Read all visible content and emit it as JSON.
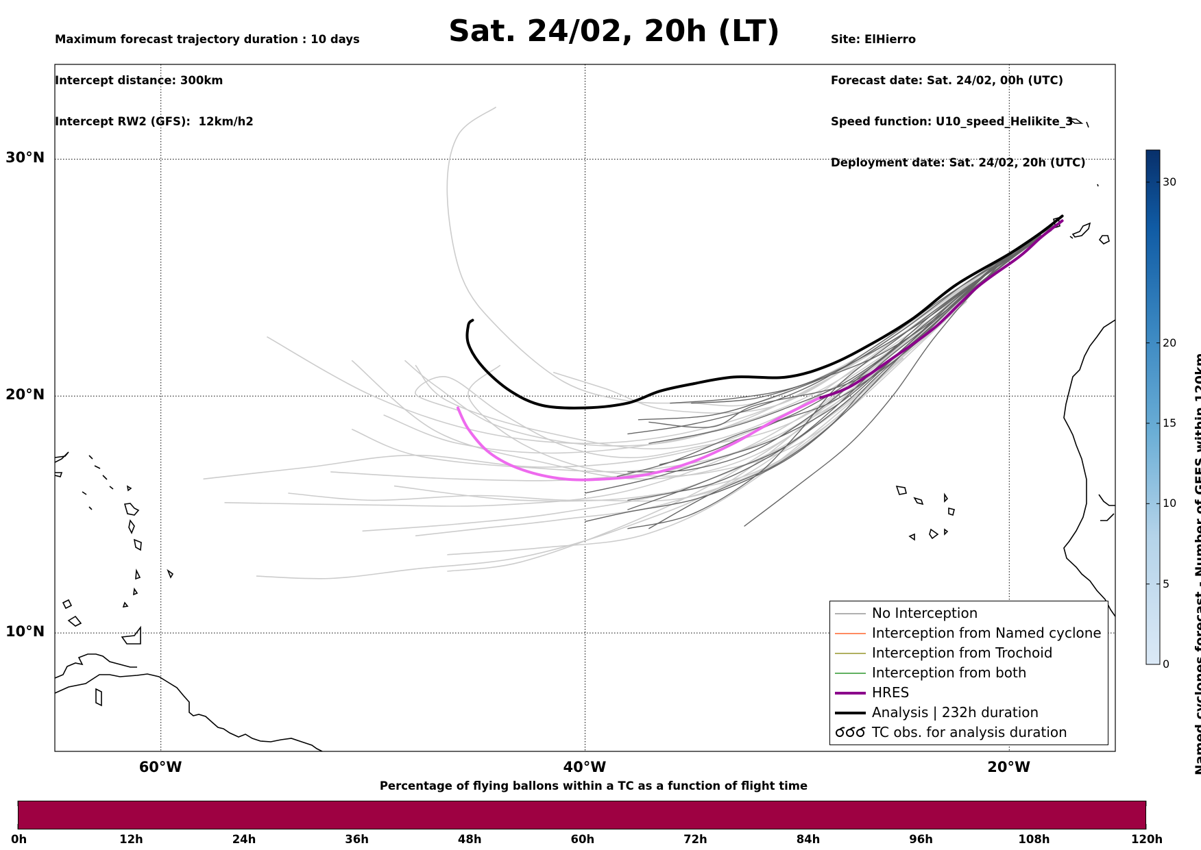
{
  "header": {
    "left_lines": [
      "Maximum forecast trajectory duration : 10 days",
      "Intercept distance: 300km",
      "Intercept RW2 (GFS):  12km/h2"
    ],
    "title": "Sat. 24/02, 20h (LT)",
    "right_lines": [
      "Site: ElHierro",
      "Forecast date: Sat. 24/02, 00h (UTC)",
      "Speed function: U10_speed_Helikite_3",
      "Deployment date: Sat. 24/02, 20h (UTC)"
    ]
  },
  "map": {
    "lon_range": [
      -65,
      -15
    ],
    "lat_range": [
      5,
      34
    ],
    "lon_ticks": [
      {
        "value": -60,
        "label": "60°W"
      },
      {
        "value": -40,
        "label": "40°W"
      },
      {
        "value": -20,
        "label": "20°W"
      }
    ],
    "lat_ticks": [
      {
        "value": 30,
        "label": "30°N"
      },
      {
        "value": 20,
        "label": "20°N"
      },
      {
        "value": 10,
        "label": "10°N"
      }
    ],
    "grid": true,
    "colors": {
      "light_member": "#cccccc",
      "dark_member": "#666666",
      "hres": "#8b008b",
      "hres_highlight": "#ee6aee",
      "analysis": "#000000"
    },
    "analysis_track": [
      [
        -17.5,
        27.6
      ],
      [
        -18.5,
        26.9
      ],
      [
        -20,
        26.0
      ],
      [
        -22.5,
        24.7
      ],
      [
        -24.5,
        23.3
      ],
      [
        -26.5,
        22.2
      ],
      [
        -28.5,
        21.3
      ],
      [
        -30.5,
        20.8
      ],
      [
        -33,
        20.8
      ],
      [
        -35,
        20.5
      ],
      [
        -36.5,
        20.2
      ],
      [
        -38,
        19.7
      ],
      [
        -40,
        19.5
      ],
      [
        -42,
        19.6
      ],
      [
        -43.5,
        20.2
      ],
      [
        -44.8,
        21.2
      ],
      [
        -45.5,
        22.2
      ],
      [
        -45.5,
        23.0
      ],
      [
        -45.3,
        23.2
      ]
    ],
    "hres_track": [
      [
        -17.5,
        27.4
      ],
      [
        -18.5,
        26.7
      ],
      [
        -19.5,
        25.9
      ],
      [
        -21.5,
        24.6
      ],
      [
        -23.5,
        22.9
      ],
      [
        -25.5,
        21.6
      ],
      [
        -27.5,
        20.4
      ],
      [
        -29,
        19.9
      ],
      [
        -31,
        19.0
      ],
      [
        -33,
        18.0
      ],
      [
        -35,
        17.2
      ],
      [
        -37,
        16.7
      ],
      [
        -39,
        16.5
      ],
      [
        -41,
        16.5
      ],
      [
        -43,
        16.9
      ],
      [
        -44.5,
        17.6
      ],
      [
        -45.5,
        18.6
      ],
      [
        -46,
        19.5
      ]
    ],
    "hres_highlight_start_lon": -28.5,
    "light_members": [
      [
        [
          -20,
          26
        ],
        [
          -24,
          23.5
        ],
        [
          -28,
          21.2
        ],
        [
          -32,
          19.7
        ],
        [
          -35,
          19.7
        ],
        [
          -38,
          19.8
        ],
        [
          -41,
          20.6
        ],
        [
          -44,
          22.8
        ],
        [
          -45.8,
          25
        ],
        [
          -46.5,
          28.5
        ],
        [
          -46,
          31
        ],
        [
          -44.2,
          32.2
        ]
      ],
      [
        [
          -20,
          26
        ],
        [
          -25,
          22.8
        ],
        [
          -30,
          20
        ],
        [
          -35,
          18.5
        ],
        [
          -40,
          18
        ],
        [
          -45,
          18.5
        ],
        [
          -50,
          20
        ],
        [
          -55,
          22.5
        ]
      ],
      [
        [
          -20,
          26
        ],
        [
          -26,
          22
        ],
        [
          -31,
          19
        ],
        [
          -36,
          17.5
        ],
        [
          -42,
          17
        ],
        [
          -48,
          17.5
        ],
        [
          -53,
          17
        ],
        [
          -58,
          16.5
        ]
      ],
      [
        [
          -20,
          26
        ],
        [
          -26,
          21.5
        ],
        [
          -32,
          18
        ],
        [
          -38,
          16
        ],
        [
          -44,
          15.4
        ],
        [
          -50,
          15.4
        ],
        [
          -57,
          15.5
        ]
      ],
      [
        [
          -20,
          26
        ],
        [
          -27,
          20.8
        ],
        [
          -33,
          16.5
        ],
        [
          -38,
          14.5
        ],
        [
          -43,
          13.2
        ],
        [
          -48,
          12.7
        ],
        [
          -52,
          12.3
        ],
        [
          -55.5,
          12.4
        ]
      ],
      [
        [
          -20,
          26
        ],
        [
          -27,
          20.5
        ],
        [
          -33,
          16.8
        ],
        [
          -38,
          14.6
        ],
        [
          -43,
          13.0
        ],
        [
          -46.5,
          12.6
        ]
      ],
      [
        [
          -21,
          25
        ],
        [
          -27,
          20.5
        ],
        [
          -32,
          17.5
        ],
        [
          -37,
          16.5
        ],
        [
          -42,
          17.2
        ],
        [
          -47,
          18.5
        ],
        [
          -51,
          21.5
        ]
      ],
      [
        [
          -21,
          25
        ],
        [
          -28,
          19.8
        ],
        [
          -34,
          17.3
        ],
        [
          -40,
          16.5
        ],
        [
          -46,
          16.5
        ],
        [
          -52,
          16.8
        ]
      ],
      [
        [
          -22,
          24
        ],
        [
          -28,
          19.5
        ],
        [
          -34,
          16
        ],
        [
          -40,
          15.6
        ],
        [
          -45,
          15.8
        ],
        [
          -50,
          15.6
        ],
        [
          -54,
          15.9
        ]
      ],
      [
        [
          -22,
          24
        ],
        [
          -29,
          18.8
        ],
        [
          -35,
          16.2
        ],
        [
          -41,
          15.1
        ],
        [
          -46,
          14.6
        ],
        [
          -50.5,
          14.3
        ]
      ],
      [
        [
          -23,
          23.5
        ],
        [
          -30,
          19.5
        ],
        [
          -36,
          17.8
        ],
        [
          -42,
          18.5
        ],
        [
          -46.5,
          19.8
        ],
        [
          -48,
          21.3
        ]
      ],
      [
        [
          -23,
          23.5
        ],
        [
          -29,
          18.5
        ],
        [
          -34,
          16.8
        ],
        [
          -39,
          16.8
        ],
        [
          -43,
          18
        ],
        [
          -45.5,
          20
        ],
        [
          -44,
          21.3
        ]
      ],
      [
        [
          -23,
          23.2
        ],
        [
          -30,
          17.7
        ],
        [
          -36,
          15.5
        ],
        [
          -41,
          14.8
        ],
        [
          -45,
          14.4
        ],
        [
          -48,
          14.1
        ]
      ],
      [
        [
          -24,
          22.8
        ],
        [
          -30,
          19
        ],
        [
          -35,
          17.8
        ],
        [
          -38,
          17.4
        ],
        [
          -41,
          17.9
        ],
        [
          -44,
          19.3
        ],
        [
          -46.5,
          20.8
        ],
        [
          -48,
          20.1
        ],
        [
          -46,
          19.4
        ]
      ],
      [
        [
          -24,
          22.5
        ],
        [
          -31,
          18.3
        ],
        [
          -37,
          16.9
        ],
        [
          -43,
          17
        ],
        [
          -48,
          17.5
        ],
        [
          -51,
          18.6
        ]
      ],
      [
        [
          -25,
          21.6
        ],
        [
          -32,
          16.5
        ],
        [
          -37,
          14.2
        ],
        [
          -42,
          13.6
        ],
        [
          -46.5,
          13.3
        ]
      ],
      [
        [
          -25,
          21.6
        ],
        [
          -31,
          17.2
        ],
        [
          -37,
          15.8
        ],
        [
          -43,
          15.6
        ],
        [
          -49,
          16.2
        ]
      ],
      [
        [
          -21,
          25
        ],
        [
          -28,
          21
        ],
        [
          -34,
          18.5
        ],
        [
          -39,
          17.9
        ],
        [
          -44,
          18.7
        ],
        [
          -47,
          20.4
        ],
        [
          -48.5,
          21.5
        ]
      ],
      [
        [
          -22,
          24.3
        ],
        [
          -29,
          20.2
        ],
        [
          -35,
          18.3
        ],
        [
          -41,
          17.6
        ],
        [
          -46,
          18.0
        ],
        [
          -49.5,
          19.2
        ]
      ],
      [
        [
          -20,
          26
        ],
        [
          -26,
          22.2
        ],
        [
          -31,
          19.6
        ],
        [
          -36,
          19.4
        ],
        [
          -39,
          20.3
        ],
        [
          -41.5,
          21.0
        ]
      ]
    ],
    "dark_members": [
      [
        [
          -17.5,
          27.4
        ],
        [
          -20,
          26
        ],
        [
          -23,
          23.5
        ],
        [
          -25.5,
          21.6
        ],
        [
          -28,
          20.4
        ],
        [
          -32,
          19.6
        ],
        [
          -34,
          18.7
        ],
        [
          -37,
          18.9
        ]
      ],
      [
        [
          -17.5,
          27.4
        ],
        [
          -20,
          26
        ],
        [
          -23,
          23.6
        ],
        [
          -26,
          21.8
        ],
        [
          -29,
          20.7
        ],
        [
          -32,
          19.9
        ],
        [
          -35,
          19.7
        ]
      ],
      [
        [
          -17.5,
          27.4
        ],
        [
          -20,
          25.9
        ],
        [
          -23,
          23.3
        ],
        [
          -26,
          21.1
        ],
        [
          -28.5,
          19.7
        ],
        [
          -31,
          18.9
        ],
        [
          -34,
          17.7
        ],
        [
          -36.5,
          17.1
        ]
      ],
      [
        [
          -17.5,
          27.4
        ],
        [
          -20,
          26
        ],
        [
          -24,
          23
        ],
        [
          -27.5,
          20.7
        ],
        [
          -30.5,
          19.5
        ],
        [
          -33.5,
          18.6
        ],
        [
          -37,
          18
        ]
      ],
      [
        [
          -18,
          27
        ],
        [
          -20.5,
          25.6
        ],
        [
          -23.5,
          23.2
        ],
        [
          -26,
          21.4
        ],
        [
          -28,
          19.7
        ],
        [
          -30,
          18.2
        ],
        [
          -32,
          17.1
        ],
        [
          -34,
          16.3
        ],
        [
          -36,
          15.9
        ],
        [
          -38,
          15.6
        ]
      ],
      [
        [
          -18,
          27
        ],
        [
          -21,
          25.2
        ],
        [
          -24,
          22.6
        ],
        [
          -26.5,
          20.6
        ],
        [
          -28.5,
          18.7
        ],
        [
          -31,
          17.1
        ],
        [
          -34,
          15.9
        ],
        [
          -37,
          14.4
        ]
      ],
      [
        [
          -18,
          27
        ],
        [
          -21,
          25
        ],
        [
          -23.5,
          22.5
        ],
        [
          -25.5,
          20.0
        ],
        [
          -27.5,
          18.0
        ],
        [
          -30,
          16.2
        ],
        [
          -32.5,
          14.5
        ]
      ],
      [
        [
          -18,
          27
        ],
        [
          -21,
          25.2
        ],
        [
          -24,
          23.2
        ],
        [
          -27,
          21.6
        ],
        [
          -30,
          20.4
        ],
        [
          -33,
          19.9
        ],
        [
          -36,
          19.7
        ]
      ],
      [
        [
          -18.5,
          26.8
        ],
        [
          -21,
          25.2
        ],
        [
          -24,
          23.0
        ],
        [
          -27,
          20.9
        ],
        [
          -30,
          19.3
        ],
        [
          -33,
          18.3
        ],
        [
          -36,
          17.2
        ],
        [
          -38.5,
          16.6
        ]
      ],
      [
        [
          -18.5,
          26.8
        ],
        [
          -22,
          24.8
        ],
        [
          -25,
          22.8
        ],
        [
          -28,
          21.1
        ],
        [
          -31,
          20.0
        ],
        [
          -34,
          19.2
        ],
        [
          -37.5,
          19.0
        ]
      ],
      [
        [
          -18.5,
          26.8
        ],
        [
          -21.5,
          24.7
        ],
        [
          -24.5,
          22.4
        ],
        [
          -27.5,
          19.9
        ],
        [
          -30.5,
          17.9
        ],
        [
          -33,
          16.9
        ],
        [
          -35.5,
          16.0
        ],
        [
          -38,
          15.2
        ]
      ],
      [
        [
          -18.5,
          26.8
        ],
        [
          -22,
          24.5
        ],
        [
          -25,
          22.0
        ],
        [
          -28,
          19.7
        ],
        [
          -31,
          18.2
        ],
        [
          -34,
          17.3
        ],
        [
          -37,
          16.5
        ],
        [
          -40,
          15.9
        ]
      ],
      [
        [
          -19,
          26.4
        ],
        [
          -22,
          24.6
        ],
        [
          -25,
          22.6
        ],
        [
          -28,
          20.5
        ],
        [
          -30,
          18.4
        ],
        [
          -32,
          16.6
        ],
        [
          -35,
          15.0
        ],
        [
          -38,
          14.4
        ]
      ],
      [
        [
          -19,
          26.4
        ],
        [
          -22,
          24.3
        ],
        [
          -25,
          21.8
        ],
        [
          -27.5,
          19.5
        ],
        [
          -30,
          17.6
        ],
        [
          -32.5,
          16.4
        ],
        [
          -35,
          15.6
        ],
        [
          -38,
          15.1
        ],
        [
          -40,
          14.7
        ]
      ],
      [
        [
          -19,
          26.4
        ],
        [
          -22.5,
          24.5
        ],
        [
          -26,
          22.3
        ],
        [
          -29,
          20.6
        ],
        [
          -32,
          19.5
        ],
        [
          -35,
          18.8
        ],
        [
          -38,
          18.4
        ]
      ],
      [
        [
          -19,
          26.4
        ],
        [
          -23,
          23.9
        ],
        [
          -26,
          21.6
        ],
        [
          -29,
          19.4
        ],
        [
          -32,
          17.7
        ],
        [
          -35,
          16.9
        ],
        [
          -38,
          16.8
        ]
      ]
    ]
  },
  "colorbar": {
    "label": "Named cyclones forecast - Number of GEFS within 120km",
    "vmin": 0,
    "vmax": 32,
    "ticks": [
      "0",
      "5",
      "10",
      "15",
      "20",
      "30"
    ],
    "color_min": "#dbe9f6",
    "color_max": "#08306b"
  },
  "legend": {
    "items": [
      {
        "label": "No Interception",
        "color": "#808080",
        "kind": "thin"
      },
      {
        "label": "Interception from Named cyclone",
        "color": "#ff4500",
        "kind": "thin"
      },
      {
        "label": "Interception from Trochoid",
        "color": "#808000",
        "kind": "thin"
      },
      {
        "label": "Interception from both",
        "color": "#008000",
        "kind": "thin"
      },
      {
        "label": "HRES",
        "color": "#8b008b",
        "kind": "thick"
      },
      {
        "label": "Analysis | 232h duration",
        "color": "#000000",
        "kind": "thick"
      },
      {
        "label": "TC obs. for analysis duration",
        "color": "#000000",
        "kind": "symbol",
        "symbol": "ᘎᘎᘎ"
      }
    ]
  },
  "flight_bar": {
    "title": "Percentage of flying ballons within a TC as a function of flight time",
    "color": "#9e0142",
    "max_hours": 120,
    "marker_hours": 34.5,
    "tick_labels": [
      "0h",
      "12h",
      "24h",
      "36h",
      "48h",
      "60h",
      "72h",
      "84h",
      "96h",
      "108h",
      "120h"
    ]
  }
}
